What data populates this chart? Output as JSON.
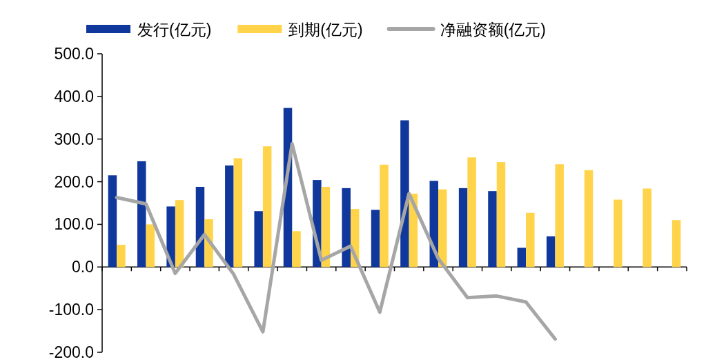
{
  "chart_data": {
    "type": "bar",
    "categories": [
      null,
      null,
      null,
      null,
      null,
      null,
      null,
      null,
      null,
      null,
      null,
      null,
      null,
      null,
      null,
      null,
      null,
      null,
      null,
      null
    ],
    "series": [
      {
        "name": "发行(亿元)",
        "color": "#10389c",
        "values": [
          215,
          248,
          142,
          188,
          238,
          131,
          373,
          204,
          185,
          134,
          344,
          202,
          185,
          178,
          45,
          72,
          null,
          null,
          null,
          null
        ]
      },
      {
        "name": "到期(亿元)",
        "color": "#ffd44a",
        "values": [
          52,
          100,
          157,
          112,
          255,
          283,
          84,
          188,
          136,
          240,
          172,
          182,
          257,
          246,
          127,
          241,
          227,
          158,
          184,
          110
        ]
      },
      {
        "name": "净融资额(亿元)",
        "type": "line",
        "color": "#a6a6a6",
        "values": [
          163,
          148,
          -15,
          76,
          -17,
          -152,
          289,
          16,
          49,
          -106,
          172,
          20,
          -72,
          -68,
          -82,
          -169,
          null,
          null,
          null,
          null
        ]
      }
    ],
    "ylim": [
      -200,
      500
    ],
    "yticks": [
      {
        "value": -200,
        "label": "-200.0"
      },
      {
        "value": -100,
        "label": "-100.0"
      },
      {
        "value": 0,
        "label": "0.0"
      },
      {
        "value": 100,
        "label": "100.0"
      },
      {
        "value": 200,
        "label": "200.0"
      },
      {
        "value": 300,
        "label": "300.0"
      },
      {
        "value": 400,
        "label": "400.0"
      },
      {
        "value": 500,
        "label": "500.0"
      }
    ],
    "legend": "top",
    "marker": "none",
    "line_style": "solid"
  }
}
